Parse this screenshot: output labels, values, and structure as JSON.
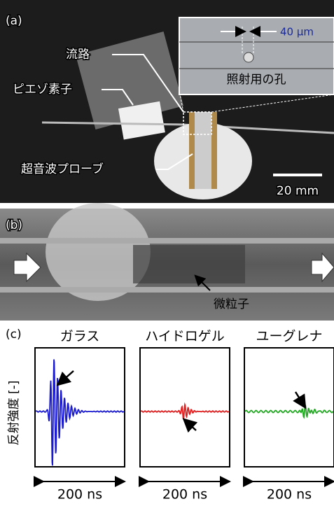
{
  "panels": {
    "a": {
      "label": "(a)",
      "callouts": [
        "流路",
        "ピエゾ素子",
        "超音波プローブ"
      ],
      "inset": {
        "width_label": "40 µm",
        "hole_label": "照射用の孔"
      },
      "scale_bar": "20 mm"
    },
    "b": {
      "label": "(b)",
      "callout": "微粒子"
    },
    "c": {
      "label": "(c)",
      "y_label": "反射強度 [-]",
      "plots": [
        {
          "title": "ガラス",
          "time_span": "200 ns",
          "color": "#1a1ad0"
        },
        {
          "title": "ハイドロゲル",
          "time_span": "200 ns",
          "color": "#e02020"
        },
        {
          "title": "ユーグレナ",
          "time_span": "200 ns",
          "color": "#22a822"
        }
      ]
    }
  }
}
